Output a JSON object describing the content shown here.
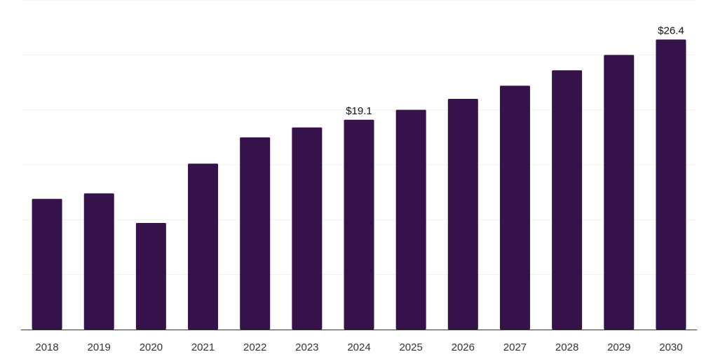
{
  "chart_data": {
    "type": "bar",
    "categories": [
      "2018",
      "2019",
      "2020",
      "2021",
      "2022",
      "2023",
      "2024",
      "2025",
      "2026",
      "2027",
      "2028",
      "2029",
      "2030"
    ],
    "values": [
      11.9,
      12.4,
      9.7,
      15.1,
      17.5,
      18.4,
      19.1,
      20.0,
      21.0,
      22.2,
      23.6,
      25.0,
      26.4
    ],
    "data_labels": [
      "",
      "",
      "",
      "",
      "",
      "",
      "$19.1",
      "",
      "",
      "",
      "",
      "",
      "$26.4"
    ],
    "title": "",
    "xlabel": "",
    "ylabel": "",
    "ylim": [
      0,
      30
    ],
    "y_gridlines": [
      5,
      10,
      15,
      20,
      25,
      30
    ],
    "grid": true,
    "legend": "none",
    "bar_color": "#36124a"
  }
}
